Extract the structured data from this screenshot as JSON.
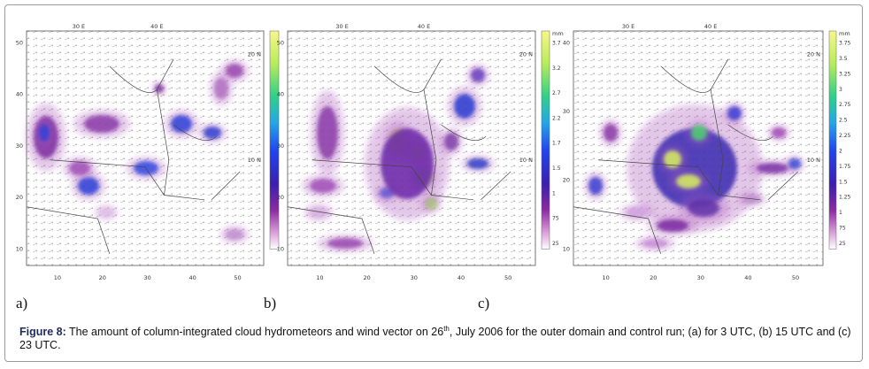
{
  "panels": [
    {
      "label": "a)",
      "xticks": [
        "10",
        "20",
        "30",
        "40",
        "50"
      ],
      "yticks": [
        "50",
        "40",
        "30",
        "20",
        "10"
      ],
      "top_labels": [
        "30 E",
        "40 E"
      ],
      "right_labels": [
        "20 N",
        "10 N"
      ],
      "colorbar_unit": null,
      "colorbar_ticks": []
    },
    {
      "label": "b)",
      "xticks": [
        "10",
        "20",
        "30",
        "40",
        "50"
      ],
      "yticks": [
        "50",
        "40",
        "30",
        "20",
        "10"
      ],
      "top_labels": [
        "30 E",
        "40 E"
      ],
      "right_labels": [
        "20 N",
        "10 N"
      ],
      "colorbar_unit": "mm",
      "colorbar_ticks": [
        "3.7",
        "3.2",
        "2.7",
        "2.2",
        "1.7",
        "1.5",
        "1",
        "75",
        "25"
      ]
    },
    {
      "label": "c)",
      "xticks": [
        "10",
        "20",
        "30",
        "40",
        "50"
      ],
      "yticks": [
        "40",
        "30",
        "20",
        "10"
      ],
      "top_labels": [
        "30 E",
        "40 E"
      ],
      "right_labels": [
        "20 N",
        "10 N"
      ],
      "colorbar_unit": "mm",
      "colorbar_ticks": [
        "3.75",
        "3.5",
        "3.25",
        "3",
        "2.75",
        "2.5",
        "2.25",
        "2",
        "1.75",
        "1.5",
        "1.25",
        "1",
        "75",
        "25"
      ]
    }
  ],
  "caption": {
    "label": "Figure 8:",
    "text_before": " The amount of column-integrated cloud hydrometeors and wind vector on 26",
    "superscript": "th",
    "text_after": ", July 2006 for the outer domain and control run; (a) for 3 UTC, (b) 15  UTC and (c)  23 UTC."
  }
}
